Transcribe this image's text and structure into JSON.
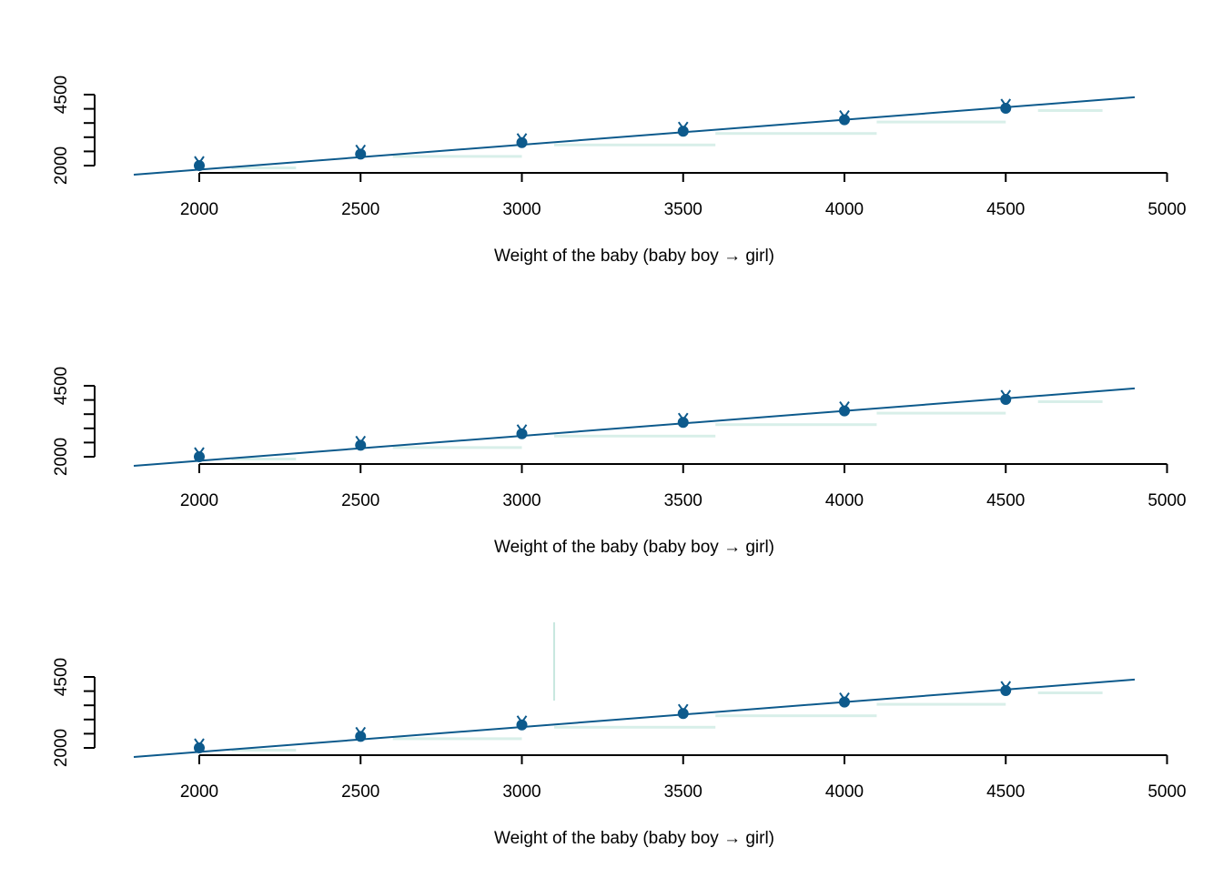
{
  "chart_data": [
    {
      "type": "line",
      "xlabel": "Weight of the baby (baby boy → girl)",
      "xlim": [
        1800,
        4900
      ],
      "x_ticks": [
        "2000",
        "2500",
        "3000",
        "3500",
        "4000",
        "4500",
        "5000"
      ],
      "y_tick_labels": [
        "2000",
        "4500"
      ],
      "ylim": [
        2000,
        4500
      ],
      "grid": false,
      "series": [
        {
          "values": [
            [
              2000,
              2000
            ],
            [
              2500,
              2500
            ],
            [
              3000,
              3000
            ],
            [
              3500,
              3500
            ],
            [
              4000,
              4000
            ],
            [
              4500,
              4500
            ]
          ]
        }
      ],
      "fit_line": [
        [
          1800,
          1800
        ],
        [
          4900,
          4900
        ]
      ],
      "colors": {
        "line": "#0d5a8c",
        "points": "#0d5a8c",
        "bands": "#8fd0c0",
        "axis": "#000000"
      }
    },
    {
      "type": "line",
      "xlabel": "Weight of the baby (baby boy → girl)",
      "xlim": [
        1800,
        4900
      ],
      "x_ticks": [
        "2000",
        "2500",
        "3000",
        "3500",
        "4000",
        "4500",
        "5000"
      ],
      "y_tick_labels": [
        "2000",
        "4500"
      ],
      "ylim": [
        2000,
        4500
      ],
      "grid": false,
      "series": [
        {
          "values": [
            [
              2000,
              2000
            ],
            [
              2500,
              2500
            ],
            [
              3000,
              3000
            ],
            [
              3500,
              3500
            ],
            [
              4000,
              4000
            ],
            [
              4500,
              4500
            ]
          ]
        }
      ],
      "fit_line": [
        [
          1800,
          1800
        ],
        [
          4900,
          4900
        ]
      ],
      "colors": {
        "line": "#0d5a8c",
        "points": "#0d5a8c",
        "bands": "#8fd0c0",
        "axis": "#000000"
      }
    },
    {
      "type": "line",
      "xlabel": "Weight of the baby (baby boy → girl)",
      "xlim": [
        1800,
        4900
      ],
      "x_ticks": [
        "2000",
        "2500",
        "3000",
        "3500",
        "4000",
        "4500",
        "5000"
      ],
      "y_tick_labels": [
        "2000",
        "4500"
      ],
      "ylim": [
        2000,
        4500
      ],
      "grid": false,
      "series": [
        {
          "values": [
            [
              2000,
              2000
            ],
            [
              2500,
              2500
            ],
            [
              3000,
              3000
            ],
            [
              3500,
              3500
            ],
            [
              4000,
              4000
            ],
            [
              4500,
              4500
            ]
          ]
        }
      ],
      "fit_line": [
        [
          1800,
          1800
        ],
        [
          4900,
          4900
        ]
      ],
      "colors": {
        "line": "#0d5a8c",
        "points": "#0d5a8c",
        "bands": "#8fd0c0",
        "axis": "#000000"
      }
    }
  ]
}
